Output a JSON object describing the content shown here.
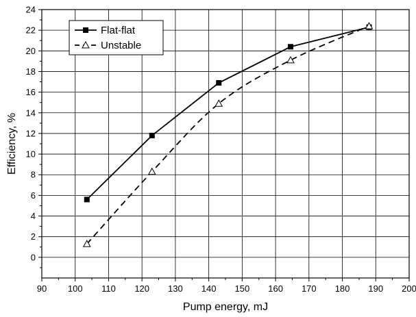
{
  "chart_data": {
    "type": "line",
    "title": "",
    "xlabel": "Pump energy, mJ",
    "ylabel": "Efficiency, %",
    "xlim": [
      90,
      200
    ],
    "ylim": [
      -2,
      24
    ],
    "xticks": [
      90,
      100,
      110,
      120,
      130,
      140,
      150,
      160,
      170,
      180,
      190,
      200
    ],
    "yticks": [
      0,
      2,
      4,
      6,
      8,
      10,
      12,
      14,
      16,
      18,
      20,
      22,
      24
    ],
    "grid": true,
    "legend_position": "top-left",
    "series": [
      {
        "name": "Flat-flat",
        "marker": "filled-square",
        "line_style": "solid",
        "color": "#000000",
        "x": [
          103.5,
          123,
          143,
          164.5,
          188
        ],
        "y": [
          5.6,
          11.8,
          16.9,
          20.4,
          22.3
        ]
      },
      {
        "name": "Unstable",
        "marker": "open-triangle",
        "line_style": "dashed",
        "color": "#000000",
        "x": [
          103.5,
          123,
          143,
          164.5,
          188
        ],
        "y": [
          1.3,
          8.3,
          14.9,
          19.1,
          22.4
        ]
      }
    ]
  }
}
